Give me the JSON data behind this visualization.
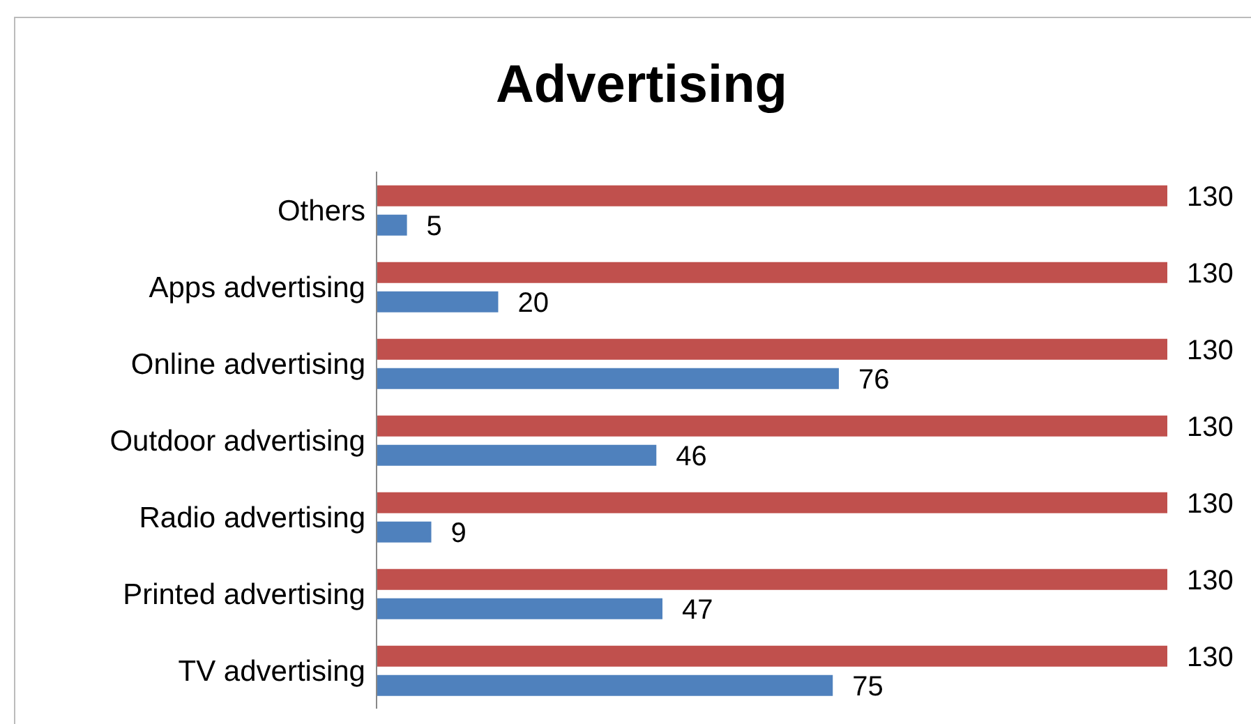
{
  "chart_data": {
    "type": "bar",
    "orientation": "horizontal",
    "title": "Advertising",
    "categories": [
      "Others",
      "Apps advertising",
      "Online advertising",
      "Outdoor advertising",
      "Radio advertising",
      "Printed advertising",
      "TV advertising"
    ],
    "series": [
      {
        "color": "#c0504d",
        "values": [
          130,
          130,
          130,
          130,
          130,
          130,
          130
        ]
      },
      {
        "color": "#4f81bd",
        "values": [
          5,
          20,
          76,
          46,
          9,
          47,
          75
        ]
      }
    ],
    "data_labels": true
  }
}
